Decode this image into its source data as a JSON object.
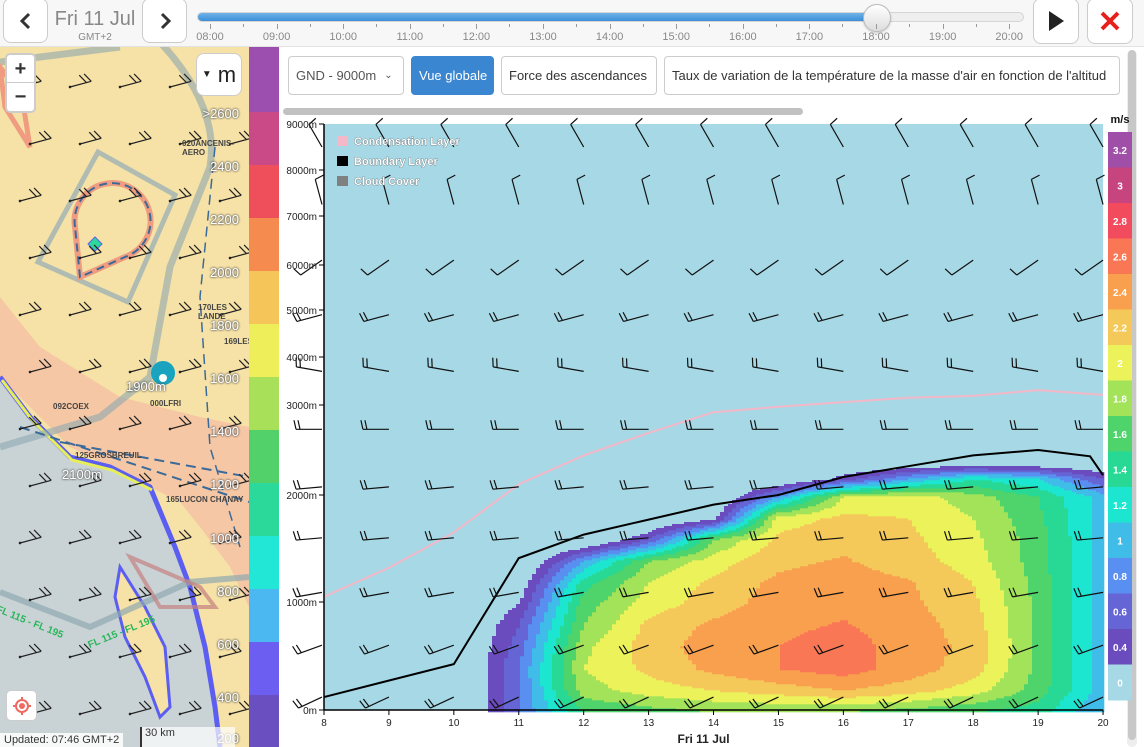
{
  "topbar": {
    "date": "Fri 11 Jul",
    "timezone": "GMT+2",
    "prev_icon": "chevron-left-icon",
    "next_icon": "chevron-right-icon",
    "play_icon": "play-icon",
    "close_icon": "close-icon",
    "time_ticks": [
      "08:00",
      "09:00",
      "10:00",
      "11:00",
      "12:00",
      "13:00",
      "14:00",
      "15:00",
      "16:00",
      "17:00",
      "18:00",
      "19:00",
      "20:00"
    ],
    "selected_time": "18:00",
    "close_color": "#e8201c"
  },
  "map": {
    "zoom_in": "+",
    "zoom_out": "−",
    "unit": "m",
    "legend_labels": [
      ">2600",
      "2400",
      "2200",
      "2000",
      "1800",
      "1600",
      "1400",
      "1200",
      "1000",
      "800",
      "600",
      "400",
      "200"
    ],
    "legend_colors": [
      "#9d4fb0",
      "#c94a86",
      "#ef4f5a",
      "#f58b4e",
      "#f5c55a",
      "#eeed5a",
      "#a8e05a",
      "#52d16a",
      "#2bd99a",
      "#22e6d6",
      "#4cb8f2",
      "#6b5ef0",
      "#6a4fc0"
    ],
    "places": [
      "020ANCENIS-AERO",
      "170LES LANDE",
      "169LES",
      "092COEX",
      "000LFRI",
      "125GROSBREUIL",
      "165LUCON CHANAY"
    ],
    "marker_label": "1900m",
    "area_label": "2100m",
    "airspace_labels": [
      "FL 115 - FL 195",
      "FL 115 - FL 195"
    ],
    "updated": "Updated: 07:46 GMT+2",
    "scale": "30 km"
  },
  "panel": {
    "altitude_select": "GND - 9000m",
    "buttons": [
      "Vue globale",
      "Force des ascendances",
      "Taux de variation de la température de la masse d'air en fonction de l'altitud"
    ],
    "accent": "#3a86d0"
  },
  "chart_data": {
    "type": "heatmap",
    "xlabel": "Fri 11 Jul",
    "x_ticks": [
      8,
      9,
      10,
      11,
      12,
      13,
      14,
      15,
      16,
      17,
      18,
      19,
      20
    ],
    "y_ticks": [
      "0m",
      "1000m",
      "2000m",
      "3000m",
      "4000m",
      "5000m",
      "6000m",
      "7000m",
      "8000m",
      "9000m"
    ],
    "y_tick_values": [
      0,
      1000,
      2000,
      3000,
      4000,
      5000,
      6000,
      7000,
      8000,
      9000
    ],
    "xlim": [
      8,
      20
    ],
    "ylim": [
      0,
      9000
    ],
    "legend": [
      {
        "label": "Condensation Layer",
        "color": "#f4b8c8"
      },
      {
        "label": "Boundary Layer",
        "color": "#000000"
      },
      {
        "label": "Cloud Cover",
        "color": "#808080"
      }
    ],
    "colorbar": {
      "unit": "m/s",
      "labels": [
        "3.2",
        "3",
        "2.8",
        "2.6",
        "2.4",
        "2.2",
        "2",
        "1.8",
        "1.6",
        "1.4",
        "1.2",
        "1",
        "0.8",
        "0.6",
        "0.4",
        "0"
      ],
      "colors": [
        "#a04fa8",
        "#c7457e",
        "#f34b5e",
        "#f97755",
        "#f8a04e",
        "#f4c95a",
        "#ebf25a",
        "#a3e35a",
        "#4ed46a",
        "#28d895",
        "#1de6d0",
        "#3fbde8",
        "#5a8ff2",
        "#6565d6",
        "#6a4cbf",
        "#a6d8e6"
      ]
    },
    "lift_grid": {
      "hours": [
        10,
        11,
        12,
        13,
        14,
        15,
        16,
        17,
        18,
        19,
        20
      ],
      "altitudes": [
        0,
        200,
        400,
        600,
        800,
        1000,
        1200,
        1400,
        1600,
        1800,
        2000,
        2200,
        2400
      ],
      "values": [
        [
          0,
          0,
          0,
          0,
          0,
          0,
          0,
          0,
          0,
          0,
          0,
          0,
          0
        ],
        [
          0.8,
          0.8,
          0.8,
          0.7,
          0.6,
          0.4,
          0.2,
          0,
          0,
          0,
          0,
          0,
          0
        ],
        [
          1.6,
          1.9,
          2.0,
          1.95,
          1.8,
          1.7,
          1.5,
          1.0,
          0,
          0,
          0,
          0,
          0
        ],
        [
          1.7,
          2.1,
          2.25,
          2.3,
          2.25,
          2.1,
          2.0,
          1.8,
          0.6,
          0,
          0,
          0,
          0
        ],
        [
          1.8,
          2.2,
          2.45,
          2.5,
          2.45,
          2.3,
          2.25,
          2.1,
          1.8,
          0.3,
          0,
          0,
          0
        ],
        [
          1.8,
          2.3,
          2.6,
          2.6,
          2.55,
          2.5,
          2.45,
          2.35,
          2.25,
          2.1,
          1.0,
          0,
          0
        ],
        [
          1.8,
          2.4,
          2.7,
          2.7,
          2.62,
          2.55,
          2.5,
          2.42,
          2.35,
          2.25,
          2.0,
          0.5,
          0
        ],
        [
          1.7,
          2.3,
          2.5,
          2.5,
          2.5,
          2.45,
          2.42,
          2.3,
          2.25,
          2.2,
          2.1,
          1.0,
          0
        ],
        [
          1.6,
          2.1,
          2.3,
          2.35,
          2.3,
          2.25,
          2.2,
          2.1,
          2.05,
          2.0,
          1.9,
          1.4,
          0
        ],
        [
          1.5,
          1.7,
          1.75,
          1.75,
          1.75,
          1.75,
          1.72,
          1.7,
          1.7,
          1.65,
          1.6,
          1.2,
          0
        ],
        [
          1.0,
          1.1,
          1.1,
          1.1,
          1.1,
          1.1,
          1.1,
          1.1,
          1.1,
          1.1,
          1.1,
          0.6,
          0
        ]
      ]
    },
    "boundary_layer": {
      "x": [
        8,
        10,
        11,
        12,
        13,
        14,
        15,
        16,
        17,
        18,
        19,
        19.8,
        20
      ],
      "y": [
        120,
        425,
        1410,
        1630,
        1770,
        1910,
        2000,
        2200,
        2320,
        2440,
        2500,
        2430,
        2220
      ]
    },
    "condensation_layer": {
      "x": [
        8,
        9,
        10,
        11,
        12,
        13,
        14,
        15,
        16,
        17,
        18,
        19,
        20
      ],
      "y": [
        1050,
        1320,
        1650,
        2120,
        2440,
        2690,
        2920,
        2980,
        3060,
        3150,
        3190,
        3310,
        3210
      ]
    },
    "wind_barbs": [
      {
        "alt": 8500,
        "dir": 330,
        "barbs": 1
      },
      {
        "alt": 7250,
        "dir": 345,
        "barbs": 1
      },
      {
        "alt": 6100,
        "dir": 235,
        "barbs": 1
      },
      {
        "alt": 4900,
        "dir": 255,
        "barbs": 2
      },
      {
        "alt": 3700,
        "dir": 280,
        "barbs": 2
      },
      {
        "alt": 2730,
        "dir": 270,
        "barbs": 2
      },
      {
        "alt": 2090,
        "dir": 265,
        "barbs": 2
      },
      {
        "alt": 1600,
        "dir": 265,
        "barbs": 2
      },
      {
        "alt": 1090,
        "dir": 260,
        "barbs": 2
      },
      {
        "alt": 600,
        "dir": 250,
        "barbs": 2
      },
      {
        "alt": 120,
        "dir": 245,
        "barbs": 2
      }
    ]
  }
}
